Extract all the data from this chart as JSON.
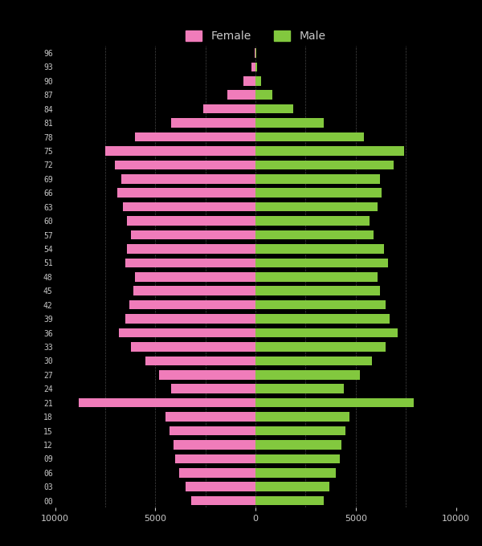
{
  "ages": [
    0,
    3,
    6,
    9,
    12,
    15,
    18,
    21,
    24,
    27,
    30,
    33,
    36,
    39,
    42,
    45,
    48,
    51,
    54,
    57,
    60,
    63,
    66,
    69,
    72,
    75,
    78,
    81,
    84,
    87,
    90,
    93,
    96
  ],
  "female": [
    3200,
    3500,
    3800,
    4000,
    4100,
    4300,
    4500,
    8800,
    4200,
    4800,
    5500,
    6200,
    6800,
    6500,
    6300,
    6100,
    6000,
    6500,
    6400,
    6200,
    6400,
    6600,
    6900,
    6700,
    7000,
    7500,
    6000,
    4200,
    2600,
    1400,
    600,
    200,
    60
  ],
  "male": [
    3400,
    3700,
    4000,
    4200,
    4300,
    4500,
    4700,
    7900,
    4400,
    5200,
    5800,
    6500,
    7100,
    6700,
    6500,
    6200,
    6100,
    6600,
    6400,
    5900,
    5700,
    6100,
    6300,
    6200,
    6900,
    7400,
    5400,
    3400,
    1900,
    850,
    300,
    90,
    25
  ],
  "female_color": "#f07cba",
  "male_color": "#82c83e",
  "bg_color": "#000000",
  "text_color": "#c8c8c8",
  "grid_color": "#444444",
  "xlim": [
    -10000,
    10000
  ],
  "xticks": [
    -10000,
    -5000,
    0,
    5000,
    10000
  ],
  "bar_height": 2.0
}
